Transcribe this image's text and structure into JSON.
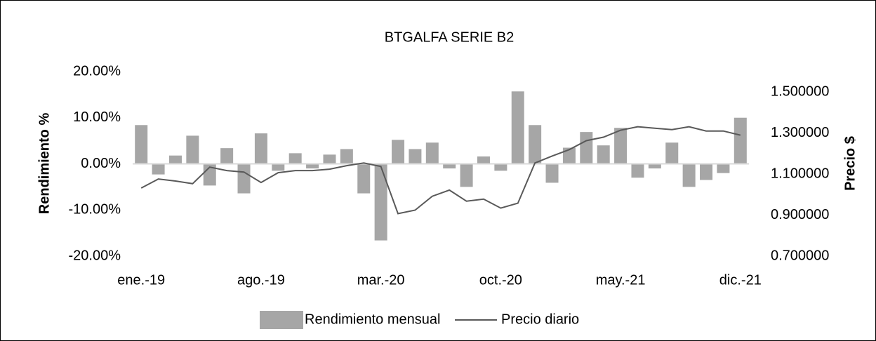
{
  "chart_data": {
    "type": "bar_line",
    "title": "BTGALFA SERIE B2",
    "ylabel": "Rendimiento %",
    "y2label": "Precio $",
    "categories": [
      "ene.-19",
      null,
      null,
      null,
      null,
      null,
      null,
      "ago.-19",
      null,
      null,
      null,
      null,
      null,
      null,
      "mar.-20",
      null,
      null,
      null,
      null,
      null,
      null,
      "oct.-20",
      null,
      null,
      null,
      null,
      null,
      null,
      "may.-21",
      null,
      null,
      null,
      null,
      null,
      null,
      "dic.-21"
    ],
    "series": [
      {
        "name": "Rendimiento mensual",
        "type": "bar",
        "color": "#a6a6a6",
        "values": [
          8.4,
          -2.3,
          1.8,
          6.1,
          -4.7,
          3.4,
          -6.4,
          6.6,
          -1.5,
          2.3,
          -1.0,
          2.0,
          3.2,
          -6.4,
          -16.6,
          5.2,
          3.2,
          4.6,
          -1.0,
          -5.0,
          1.6,
          -1.5,
          15.7,
          8.4,
          -4.1,
          3.5,
          6.9,
          4.0,
          7.8,
          -3.0,
          -1.0,
          4.6,
          -5.0,
          -3.5,
          -2.0,
          10.0
        ]
      },
      {
        "name": "Precio diario",
        "type": "line",
        "axis": "y2",
        "color": "#595959",
        "values": [
          1.032,
          1.076,
          1.066,
          1.053,
          1.134,
          1.117,
          1.11,
          1.059,
          1.107,
          1.117,
          1.117,
          1.124,
          1.141,
          1.154,
          1.137,
          0.907,
          0.924,
          0.992,
          1.022,
          0.968,
          0.978,
          0.934,
          0.958,
          1.154,
          1.188,
          1.219,
          1.263,
          1.28,
          1.314,
          1.331,
          1.324,
          1.317,
          1.331,
          1.31,
          1.31,
          1.29
        ]
      }
    ],
    "ylim": [
      -20,
      20
    ],
    "yticks": [
      {
        "value": -20,
        "label": "-20.00%"
      },
      {
        "value": -10,
        "label": "-10.00%"
      },
      {
        "value": 0,
        "label": "0.00%"
      },
      {
        "value": 10,
        "label": "10.00%"
      },
      {
        "value": 20,
        "label": "20.00%"
      }
    ],
    "y2lim": [
      0.7,
      1.6
    ],
    "y2ticks": [
      {
        "value": 0.7,
        "label": "0.700000"
      },
      {
        "value": 0.9,
        "label": "0.900000"
      },
      {
        "value": 1.1,
        "label": "1.100000"
      },
      {
        "value": 1.3,
        "label": "1.300000"
      },
      {
        "value": 1.5,
        "label": "1.500000"
      }
    ],
    "grid": false,
    "legend": "bottom"
  }
}
